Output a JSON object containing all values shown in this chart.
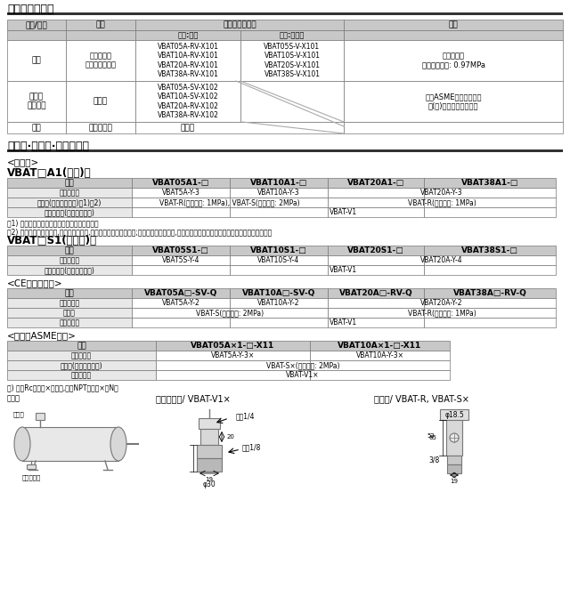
{
  "title1": "海外輸出対応表",
  "title2": "可选项·附件品·零部件型号",
  "section1_headers": [
    "国名/地域",
    "法規",
    "允许出口的型号",
    "材质:碳钢",
    "材质:不锈钢",
    "内容"
  ],
  "korea_law": "高压气体法\n产业安全保健法",
  "korea_carbon": "VBAT05A-RV-X101\nVBAT10A-RV-X101\nVBAT20A-RV-X101\nVBAT38A-RV-X101",
  "korea_stainless": "VBAT05S-V-X101\nVBAT10S-V-X101\nVBAT20S-V-X101\nVBAT38S-V-X101",
  "korea_content": "适合除外品\n最高使用压力: 0.97MPa",
  "sing_region": "新加坡\n马来西亚",
  "sing_law": "工厂法",
  "sing_carbon": "VBAT05A-SV-X102\nVBAT10A-SV-X102\nVBAT20A-RV-X102\nVBAT38A-RV-X102",
  "sing_content": "符合ASME基准的制作品\n带(社)日本锅炉会证明书",
  "taiwan_law": "无适合规格",
  "taiwan_carbon": "标准品",
  "section2_title": "<标准品>",
  "a1_title": "VBAT□A1(碳钢)用",
  "a1_headers": [
    "型号",
    "VBAT05A1-□",
    "VBAT10A1-□",
    "VBAT20A1-□",
    "VBAT38A1-□"
  ],
  "s1_title": "VBAT□S1(不锈钢)用",
  "s1_headers": [
    "型号",
    "VBAT05S1-□",
    "VBAT10S1-□",
    "VBAT20S1-□",
    "VBAT38S1-□"
  ],
  "ce_section": "<CE标志适用品>",
  "ce_headers": [
    "型号",
    "VBAT05A□-SV-Q",
    "VBAT10A□-SV-Q",
    "VBAT20A□-RV-Q",
    "VBAT38A□-RV-Q"
  ],
  "asme_section": "<不符合ASME规格>",
  "asme_headers": [
    "型号",
    "VBAT05A×1-□-X11",
    "VBAT10A×1-□-X11"
  ],
  "note1": "注1) 安全阀是用于对气罐进行压力保护的装置。",
  "note2": "注2) 当压力达到设定值时,安全阀自动开启,释放气罐内部的过高压力;当压力低于设定值时,安全阀关闭。按照气罐的最高使用压力选择安全阀。",
  "note3": "注) 选择Rc螺纹时×为空白,选择NPT螺纹时×为N。",
  "diag1_title": "冷凝水用阀/ VBAT-V1×",
  "diag2_title": "安全阀/ VBAT-R, VBAT-S×",
  "diag1_label_inlet": "进口1/4",
  "diag1_label_outlet": "出口1/8",
  "diag1_label_d": "φ30",
  "diag1_label_20": "20",
  "diag1_label_19": "19",
  "diag2_label_d": "φ18.5",
  "diag2_label_38": "3/8",
  "diag2_label_19": "19",
  "left_label_safety": "安全阀",
  "left_label_drain": "冷凝水用阀",
  "hdr_bg": "#c8c8c8",
  "row_bg": "#e8e8e8",
  "white": "#ffffff",
  "border": "#777777",
  "dark": "#333333"
}
